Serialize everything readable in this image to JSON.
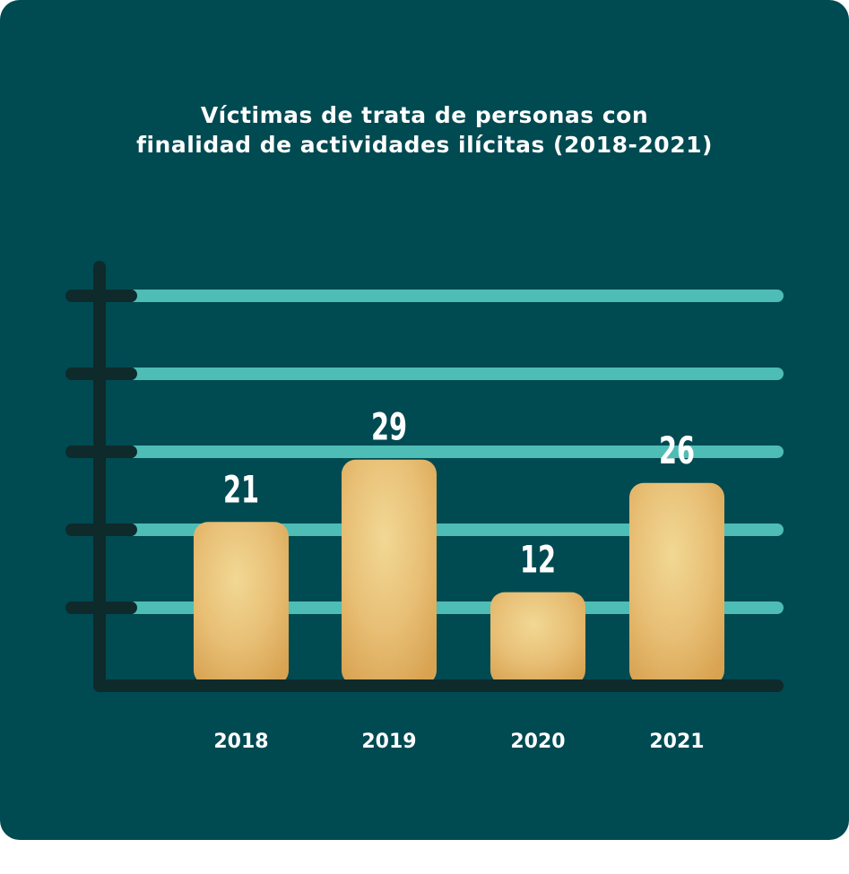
{
  "colors": {
    "background": "#004a52",
    "gridline": "#4dbdb6",
    "axis": "#0f2a2b",
    "bar_light": "#f3d993",
    "bar_dark": "#d9a24c",
    "text": "#ffffff"
  },
  "chart_data": {
    "type": "bar",
    "title_lines": [
      "Víctimas de trata de personas con",
      "finalidad de actividades ilícitas (2018-2021)"
    ],
    "categories": [
      "2018",
      "2019",
      "2020",
      "2021"
    ],
    "values": [
      21,
      29,
      12,
      26
    ],
    "value_labels": [
      "21",
      "29",
      "12",
      "26"
    ],
    "ylim": [
      0,
      55
    ],
    "gridlines": [
      10,
      20,
      30,
      40,
      50
    ],
    "grid": true,
    "xlabel": "",
    "ylabel": ""
  }
}
